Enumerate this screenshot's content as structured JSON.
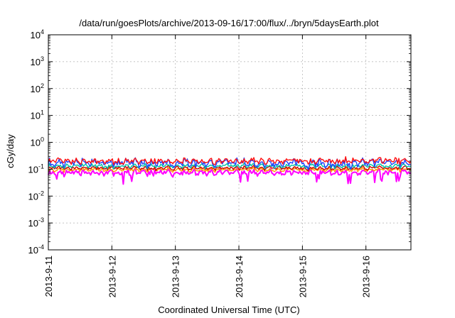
{
  "chart_data": {
    "type": "line",
    "title": "/data/run/goesPlots/archive/2013-09-16/17:00/flux/../bryn/5daysEarth.plot",
    "xlabel": "Coordinated Universal Time (UTC)",
    "ylabel": "cGy/day",
    "x_ticks": [
      "2013-9-11",
      "2013-9-12",
      "2013-9-13",
      "2013-9-14",
      "2013-9-15",
      "2013-9-16"
    ],
    "xlim": [
      "2013-09-11 00:00",
      "2013-09-16 17:00"
    ],
    "y_scale": "log",
    "ylim": [
      0.0001,
      10000
    ],
    "y_ticks": [
      {
        "base": "10",
        "exp": "-4"
      },
      {
        "base": "10",
        "exp": "-3"
      },
      {
        "base": "10",
        "exp": "-2"
      },
      {
        "base": "10",
        "exp": "-1"
      },
      {
        "base": "10",
        "exp": "0"
      },
      {
        "base": "10",
        "exp": "1"
      },
      {
        "base": "10",
        "exp": "2"
      },
      {
        "base": "10",
        "exp": "3"
      },
      {
        "base": "10",
        "exp": "4"
      }
    ],
    "grid": true,
    "legend": "none",
    "series": [
      {
        "color": "#ff00ff",
        "level": 0.075,
        "spread": 0.35
      },
      {
        "color": "#ff9900",
        "level": 0.095,
        "spread": 0.2
      },
      {
        "color": "#cc0000",
        "level": 0.11,
        "spread": 0.2
      },
      {
        "color": "#00c0a0",
        "level": 0.13,
        "spread": 0.25
      },
      {
        "color": "#2040ff",
        "level": 0.17,
        "spread": 0.45
      },
      {
        "color": "#ff1010",
        "level": 0.2,
        "spread": 0.35
      }
    ]
  }
}
